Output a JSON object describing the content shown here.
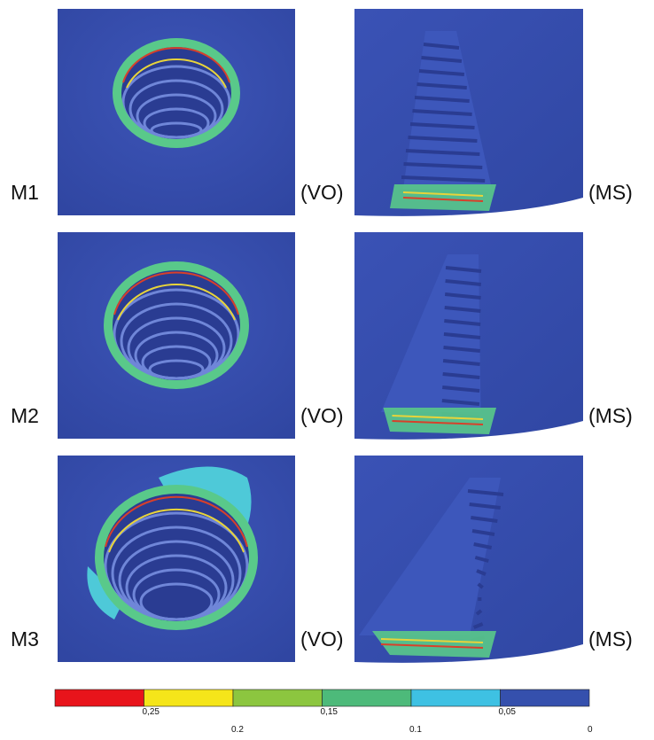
{
  "rows": [
    {
      "label": "M1",
      "left_view": "(VO)",
      "right_view": "(MS)"
    },
    {
      "label": "M2",
      "left_view": "(VO)",
      "right_view": "(MS)"
    },
    {
      "label": "M3",
      "left_view": "(VO)",
      "right_view": "(MS)"
    }
  ],
  "colorbar": {
    "colors": [
      "#e8141b",
      "#f5e51a",
      "#8cc63f",
      "#4dba7a",
      "#3ec1e3",
      "#3550ad"
    ],
    "labels": [
      "0,25",
      "0.2",
      "0,15",
      "0.1",
      "0,05",
      "0"
    ]
  }
}
